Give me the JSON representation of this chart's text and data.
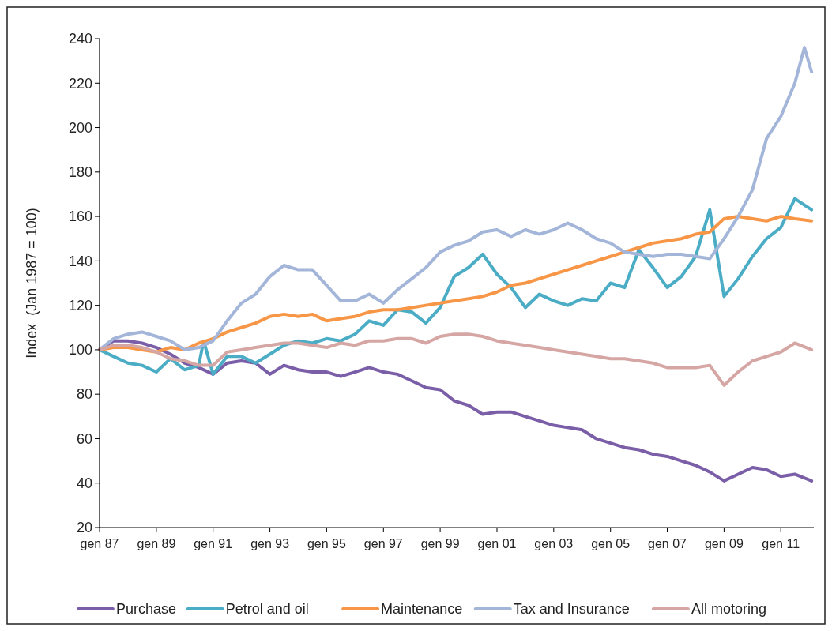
{
  "chart_data": {
    "type": "line",
    "ylabel": "Index  (Jan 1987 = 100)",
    "ylim": [
      20,
      240
    ],
    "yticks": [
      20,
      40,
      60,
      80,
      100,
      120,
      140,
      160,
      180,
      200,
      220,
      240
    ],
    "xlim": [
      "1987-01",
      "2012-03"
    ],
    "xticks": [
      {
        "value": "1987-01",
        "label": "gen 87"
      },
      {
        "value": "1989-01",
        "label": "gen 89"
      },
      {
        "value": "1991-01",
        "label": "gen 91"
      },
      {
        "value": "1993-01",
        "label": "gen 93"
      },
      {
        "value": "1995-01",
        "label": "gen 95"
      },
      {
        "value": "1997-01",
        "label": "gen 97"
      },
      {
        "value": "1999-01",
        "label": "gen 99"
      },
      {
        "value": "2001-01",
        "label": "gen 01"
      },
      {
        "value": "2003-01",
        "label": "gen 03"
      },
      {
        "value": "2005-01",
        "label": "gen 05"
      },
      {
        "value": "2007-01",
        "label": "gen 07"
      },
      {
        "value": "2009-01",
        "label": "gen 09"
      },
      {
        "value": "2011-01",
        "label": "gen 11"
      }
    ],
    "x": [
      "1987-01",
      "1987-07",
      "1988-01",
      "1988-07",
      "1989-01",
      "1989-07",
      "1990-01",
      "1990-07",
      "1991-01",
      "1991-07",
      "1992-01",
      "1992-07",
      "1993-01",
      "1993-07",
      "1994-01",
      "1994-07",
      "1995-01",
      "1995-07",
      "1996-01",
      "1996-07",
      "1997-01",
      "1997-07",
      "1998-01",
      "1998-07",
      "1999-01",
      "1999-07",
      "2000-01",
      "2000-07",
      "2001-01",
      "2001-07",
      "2002-01",
      "2002-07",
      "2003-01",
      "2003-07",
      "2004-01",
      "2004-07",
      "2005-01",
      "2005-07",
      "2006-01",
      "2006-07",
      "2007-01",
      "2007-07",
      "2008-01",
      "2008-07",
      "2009-01",
      "2009-07",
      "2010-01",
      "2010-07",
      "2011-01",
      "2011-07",
      "2012-02"
    ],
    "grid": false,
    "legend": "bottom",
    "marker": "none",
    "line_style": "solid",
    "series": [
      {
        "name": "Purchase",
        "color": "#7b5ea8",
        "values": [
          100,
          104,
          104,
          103,
          101,
          98,
          94,
          92,
          89,
          94,
          95,
          94,
          89,
          93,
          91,
          90,
          90,
          88,
          90,
          92,
          90,
          89,
          86,
          83,
          82,
          77,
          75,
          71,
          72,
          72,
          70,
          68,
          66,
          65,
          64,
          60,
          58,
          56,
          55,
          53,
          52,
          50,
          48,
          45,
          41,
          44,
          47,
          46,
          43,
          44,
          41
        ]
      },
      {
        "name": "Petrol and oil",
        "color": "#4bacc6",
        "x": [
          "1987-01",
          "1987-07",
          "1988-01",
          "1988-07",
          "1989-01",
          "1989-07",
          "1990-01",
          "1990-07",
          "1990-09",
          "1991-01",
          "1991-07",
          "1992-01",
          "1992-07",
          "1993-01",
          "1993-07",
          "1994-01",
          "1994-07",
          "1995-01",
          "1995-07",
          "1996-01",
          "1996-07",
          "1997-01",
          "1997-07",
          "1998-01",
          "1998-07",
          "1999-01",
          "1999-07",
          "2000-01",
          "2000-07",
          "2001-01",
          "2001-07",
          "2002-01",
          "2002-07",
          "2003-01",
          "2003-07",
          "2004-01",
          "2004-07",
          "2005-01",
          "2005-07",
          "2006-01",
          "2006-07",
          "2007-01",
          "2007-07",
          "2008-01",
          "2008-07",
          "2009-01",
          "2009-07",
          "2010-01",
          "2010-07",
          "2011-01",
          "2011-07",
          "2012-02"
        ],
        "values": [
          100,
          97,
          94,
          93,
          90,
          96,
          91,
          93,
          104,
          89,
          97,
          97,
          94,
          98,
          102,
          104,
          103,
          105,
          104,
          107,
          113,
          111,
          118,
          117,
          112,
          119,
          133,
          137,
          143,
          134,
          128,
          119,
          125,
          122,
          120,
          123,
          122,
          130,
          128,
          145,
          137,
          128,
          133,
          142,
          163,
          124,
          132,
          142,
          150,
          155,
          168,
          163
        ]
      },
      {
        "name": "Maintenance",
        "color": "#f79646",
        "values": [
          100,
          101,
          101,
          100,
          99,
          101,
          100,
          103,
          105,
          108,
          110,
          112,
          115,
          116,
          115,
          116,
          113,
          114,
          115,
          117,
          118,
          118,
          119,
          120,
          121,
          122,
          123,
          124,
          126,
          129,
          130,
          132,
          134,
          136,
          138,
          140,
          142,
          144,
          146,
          148,
          149,
          150,
          152,
          153,
          159,
          160,
          159,
          158,
          160,
          159,
          158
        ]
      },
      {
        "name": "Tax and Insurance",
        "color": "#a3b5d8",
        "x": [
          "1987-01",
          "1987-07",
          "1988-01",
          "1988-07",
          "1989-01",
          "1989-07",
          "1990-01",
          "1990-07",
          "1991-01",
          "1991-07",
          "1992-01",
          "1992-07",
          "1993-01",
          "1993-07",
          "1994-01",
          "1994-07",
          "1995-01",
          "1995-07",
          "1996-01",
          "1996-07",
          "1997-01",
          "1997-07",
          "1998-01",
          "1998-07",
          "1999-01",
          "1999-07",
          "2000-01",
          "2000-07",
          "2001-01",
          "2001-07",
          "2002-01",
          "2002-07",
          "2003-01",
          "2003-07",
          "2004-01",
          "2004-07",
          "2005-01",
          "2005-07",
          "2006-01",
          "2006-07",
          "2007-01",
          "2007-07",
          "2008-01",
          "2008-07",
          "2009-01",
          "2009-07",
          "2010-01",
          "2010-07",
          "2011-01",
          "2011-07",
          "2011-11",
          "2012-02"
        ],
        "values": [
          100,
          105,
          107,
          108,
          106,
          104,
          100,
          101,
          104,
          113,
          121,
          125,
          133,
          138,
          136,
          136,
          129,
          122,
          122,
          125,
          121,
          127,
          132,
          137,
          144,
          147,
          149,
          153,
          154,
          151,
          154,
          152,
          154,
          157,
          154,
          150,
          148,
          144,
          143,
          142,
          143,
          143,
          142,
          141,
          150,
          160,
          172,
          195,
          205,
          220,
          236,
          225
        ]
      },
      {
        "name": "All motoring",
        "color": "#d5a6a4",
        "values": [
          100,
          102,
          102,
          101,
          99,
          96,
          95,
          93,
          93,
          99,
          100,
          101,
          102,
          103,
          103,
          102,
          101,
          103,
          102,
          104,
          104,
          105,
          105,
          103,
          106,
          107,
          107,
          106,
          104,
          103,
          102,
          101,
          100,
          99,
          98,
          97,
          96,
          96,
          95,
          94,
          92,
          92,
          92,
          93,
          84,
          90,
          95,
          97,
          99,
          103,
          100
        ]
      }
    ]
  }
}
